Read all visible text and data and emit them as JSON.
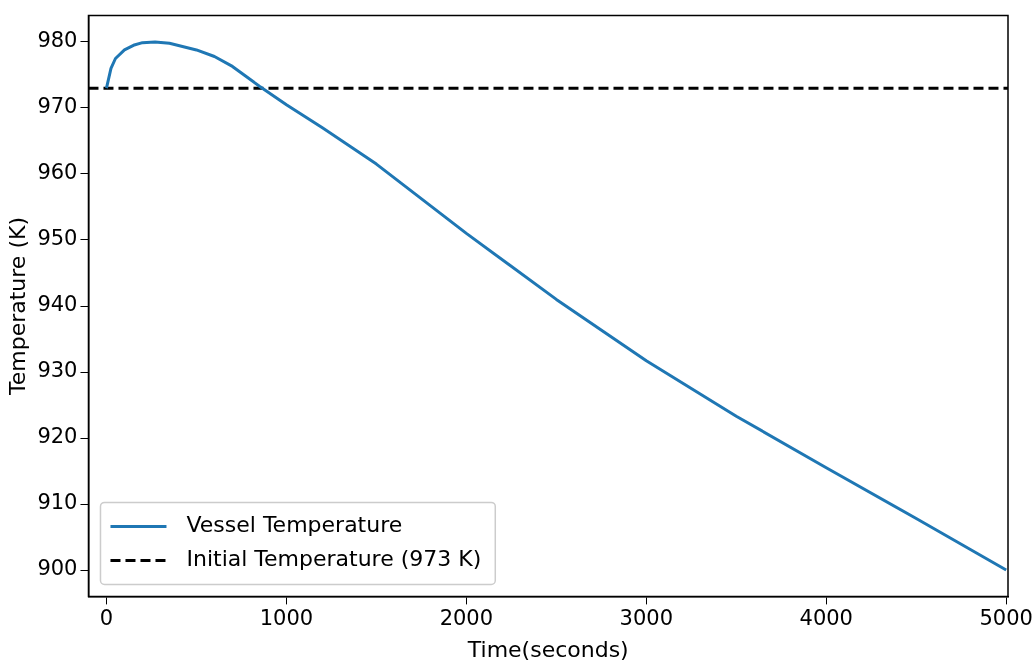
{
  "chart_data": {
    "type": "line",
    "xlabel": "Time(seconds)",
    "ylabel": "Temperature (K)",
    "xlim": [
      -100,
      5010
    ],
    "xticks": [
      0,
      1000,
      2000,
      3000,
      4000,
      5000
    ],
    "ylim": [
      896,
      984
    ],
    "yticks": [
      900,
      910,
      920,
      930,
      940,
      950,
      960,
      970,
      980
    ],
    "series": [
      {
        "name": "Vessel Temperature",
        "color": "#1f77b4",
        "x": [
          0,
          25,
          50,
          100,
          150,
          200,
          270,
          350,
          500,
          600,
          700,
          850,
          1000,
          1200,
          1500,
          2000,
          2500,
          3000,
          3500,
          4000,
          4500,
          5000
        ],
        "values": [
          973,
          976,
          977.5,
          978.8,
          979.5,
          979.9,
          980,
          979.8,
          978.8,
          977.8,
          976.3,
          973.3,
          970.5,
          967,
          961.5,
          951,
          941,
          931.7,
          923.3,
          915.5,
          907.8,
          900
        ]
      }
    ],
    "ref_lines": [
      {
        "axis": "y",
        "value": 973,
        "label": "Initial Temperature (973 K)",
        "color": "#000000",
        "line_style": "dashed"
      }
    ],
    "legend": "bottom left",
    "grid": false,
    "marker": "none",
    "line_style": "solid"
  }
}
